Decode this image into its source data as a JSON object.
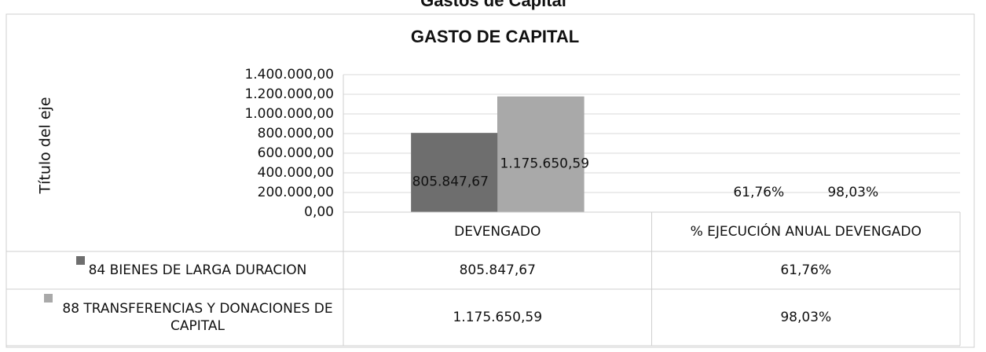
{
  "page_heading": "Gastos de Capital",
  "chart_data": {
    "type": "bar",
    "title": "GASTO DE CAPITAL",
    "y_axis_label": "Título del eje",
    "categories": [
      "DEVENGADO",
      "% EJECUCIÓN ANUAL DEVENGADO"
    ],
    "series": [
      {
        "name": "84 BIENES DE LARGA DURACION",
        "color": "#6e6e6e",
        "values": [
          805847.67,
          61.76
        ],
        "value_labels": [
          "805.847,67",
          "61,76%"
        ]
      },
      {
        "name": "88 TRANSFERENCIAS Y DONACIONES DE CAPITAL",
        "color": "#a9a9a9",
        "values": [
          1175650.59,
          98.03
        ],
        "value_labels": [
          "1.175.650,59",
          "98,03%"
        ]
      }
    ],
    "ylim": [
      0,
      1400000
    ],
    "yticks": [
      {
        "value": 0,
        "label": "0,00"
      },
      {
        "value": 200000,
        "label": "200.000,00"
      },
      {
        "value": 400000,
        "label": "400.000,00"
      },
      {
        "value": 600000,
        "label": "600.000,00"
      },
      {
        "value": 800000,
        "label": "800.000,00"
      },
      {
        "value": 1000000,
        "label": "1.000.000,00"
      },
      {
        "value": 1200000,
        "label": "1.200.000,00"
      },
      {
        "value": 1400000,
        "label": "1.400.000,00"
      }
    ],
    "grid": true,
    "data_table": true
  }
}
